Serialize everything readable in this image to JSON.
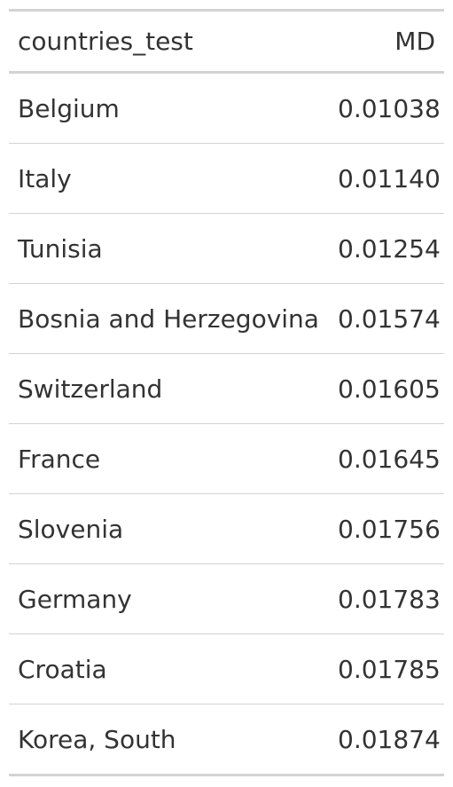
{
  "table": {
    "columns": [
      "countries_test",
      "MD"
    ],
    "rows": [
      [
        "Belgium",
        "0.01038"
      ],
      [
        "Italy",
        "0.01140"
      ],
      [
        "Tunisia",
        "0.01254"
      ],
      [
        "Bosnia and Herzegovina",
        "0.01574"
      ],
      [
        "Switzerland",
        "0.01605"
      ],
      [
        "France",
        "0.01645"
      ],
      [
        "Slovenia",
        "0.01756"
      ],
      [
        "Germany",
        "0.01783"
      ],
      [
        "Croatia",
        "0.01785"
      ],
      [
        "Korea, South",
        "0.01874"
      ]
    ]
  }
}
